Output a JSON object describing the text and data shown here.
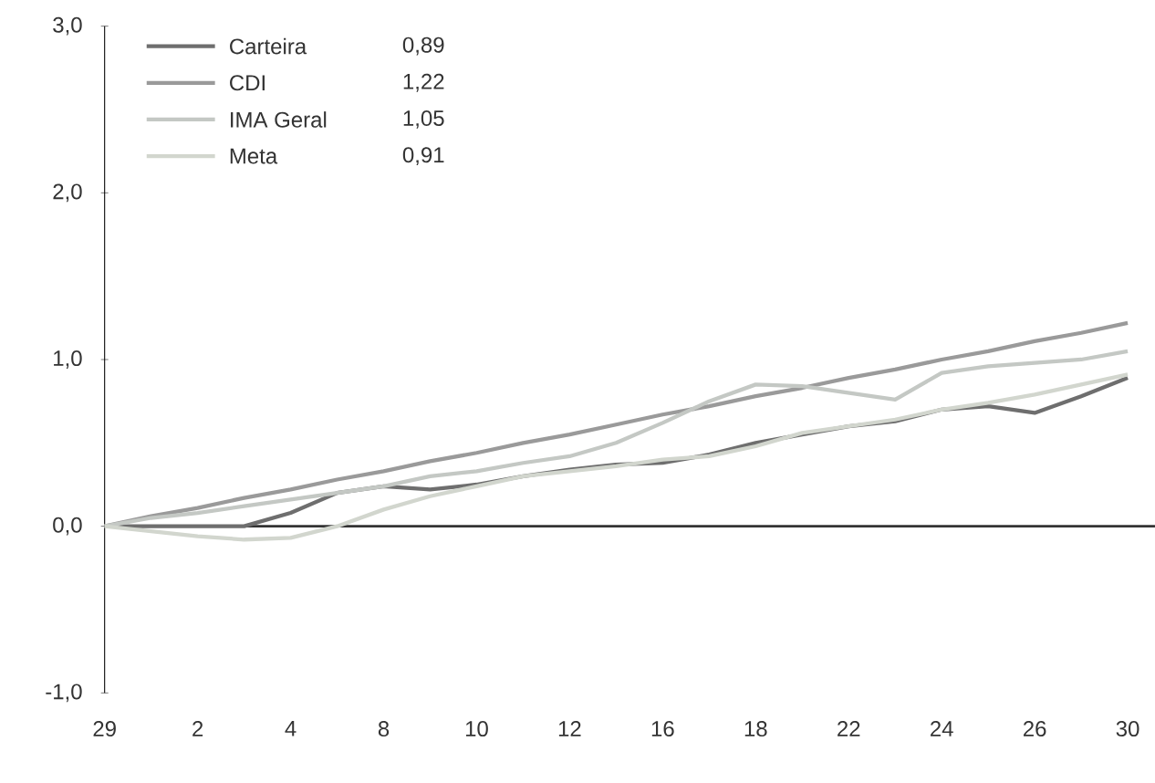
{
  "chart_data": {
    "type": "line",
    "categories": [
      "29",
      null,
      "2",
      null,
      "4",
      null,
      "8",
      null,
      "10",
      null,
      "12",
      null,
      "16",
      null,
      "18",
      null,
      "22",
      null,
      "24",
      null,
      "26",
      null,
      "30"
    ],
    "series": [
      {
        "name": "Carteira",
        "color": "#6e6e6e",
        "values": [
          0,
          0,
          0,
          0,
          0.08,
          0.2,
          0.24,
          0.22,
          0.25,
          0.3,
          0.34,
          0.37,
          0.38,
          0.43,
          0.5,
          0.55,
          0.6,
          0.63,
          0.7,
          0.72,
          0.68,
          0.78,
          0.89
        ]
      },
      {
        "name": "CDI",
        "color": "#9a9a9a",
        "values": [
          0,
          0.06,
          0.11,
          0.17,
          0.22,
          0.28,
          0.33,
          0.39,
          0.44,
          0.5,
          0.55,
          0.61,
          0.67,
          0.72,
          0.78,
          0.83,
          0.89,
          0.94,
          1.0,
          1.05,
          1.11,
          1.16,
          1.22
        ]
      },
      {
        "name": "IMA Geral",
        "color": "#c4c8c4",
        "values": [
          0,
          0.05,
          0.08,
          0.12,
          0.16,
          0.2,
          0.24,
          0.3,
          0.33,
          0.38,
          0.42,
          0.5,
          0.62,
          0.75,
          0.85,
          0.84,
          0.8,
          0.76,
          0.92,
          0.96,
          0.98,
          1.0,
          1.05
        ]
      },
      {
        "name": "Meta",
        "color": "#d2d6ce",
        "values": [
          0,
          -0.03,
          -0.06,
          -0.08,
          -0.07,
          0,
          0.1,
          0.18,
          0.24,
          0.3,
          0.33,
          0.36,
          0.4,
          0.42,
          0.48,
          0.56,
          0.6,
          0.64,
          0.7,
          0.74,
          0.79,
          0.85,
          0.91
        ]
      }
    ],
    "annotations": [
      "0,89",
      "1,22",
      "1,05",
      "0,91"
    ],
    "ylim": [
      -1,
      3
    ],
    "yticks": [
      {
        "value": -1,
        "label": "-1,0"
      },
      {
        "value": 0,
        "label": "0,0"
      },
      {
        "value": 1,
        "label": "1,0"
      },
      {
        "value": 2,
        "label": "2,0"
      },
      {
        "value": 3,
        "label": "3,0"
      }
    ],
    "ref_lines": [
      {
        "axis": "y",
        "value": 0,
        "color": "#333333"
      }
    ],
    "legend": "top left",
    "grid": false,
    "line_style": "solid",
    "marker": "none"
  }
}
